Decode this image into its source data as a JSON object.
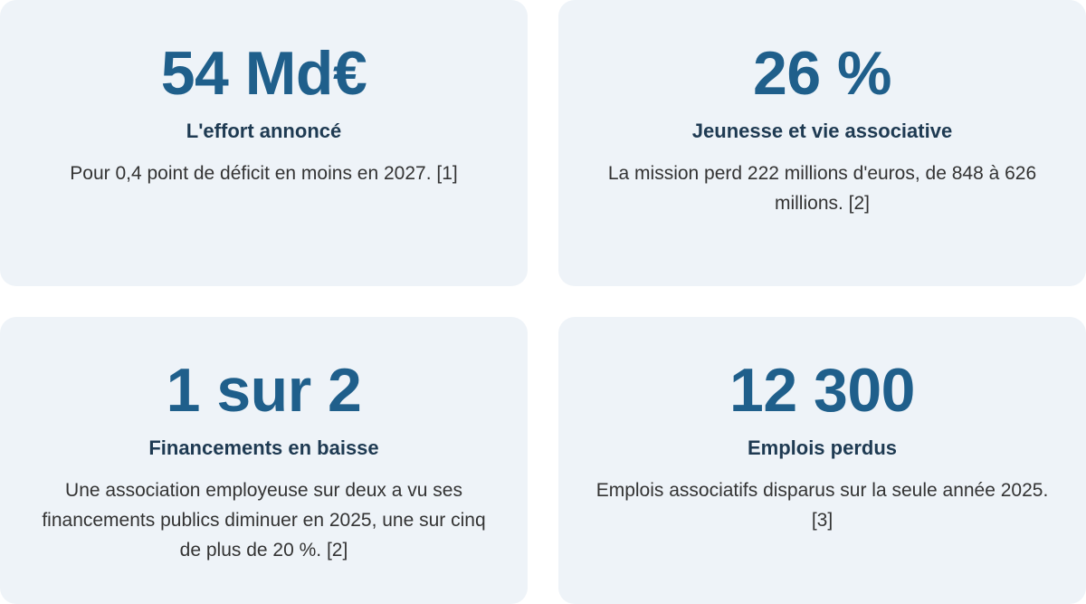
{
  "cards": [
    {
      "stat": "54 Md€",
      "title": "L'effort annoncé",
      "description": "Pour 0,4 point de déficit en moins en 2027. [1]"
    },
    {
      "stat": "26 %",
      "title": "Jeunesse et vie associative",
      "description": "La mission perd 222 millions d'euros, de 848 à 626 millions. [2]"
    },
    {
      "stat": "1 sur 2",
      "title": "Financements en baisse",
      "description": "Une association employeuse sur deux a vu ses financements publics diminuer en 2025, une sur cinq de plus de 20 %. [2]"
    },
    {
      "stat": "12 300",
      "title": "Emplois perdus",
      "description": "Emplois associatifs disparus sur la seule année 2025. [3]"
    }
  ],
  "colors": {
    "card_background": "#eef3f8",
    "stat": "#1f5f8b",
    "title": "#1e3a52",
    "text": "#333333"
  }
}
